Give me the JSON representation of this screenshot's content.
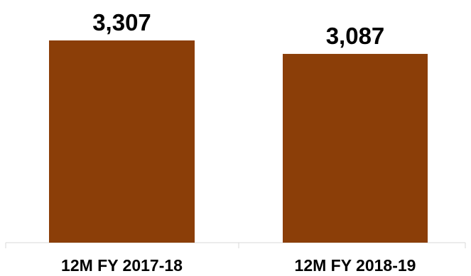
{
  "chart_data": {
    "type": "bar",
    "categories": [
      "12M FY 2017-18",
      "12M FY 2018-19"
    ],
    "values": [
      3307,
      3087
    ],
    "data_labels": [
      "3,307",
      "3,087"
    ],
    "title": "",
    "xlabel": "",
    "ylabel": "",
    "ylim": [
      0,
      3307
    ],
    "grid": false,
    "legend": "none",
    "colors": {
      "bar": "#8B3E08",
      "axis": "#D9D9D9"
    }
  }
}
